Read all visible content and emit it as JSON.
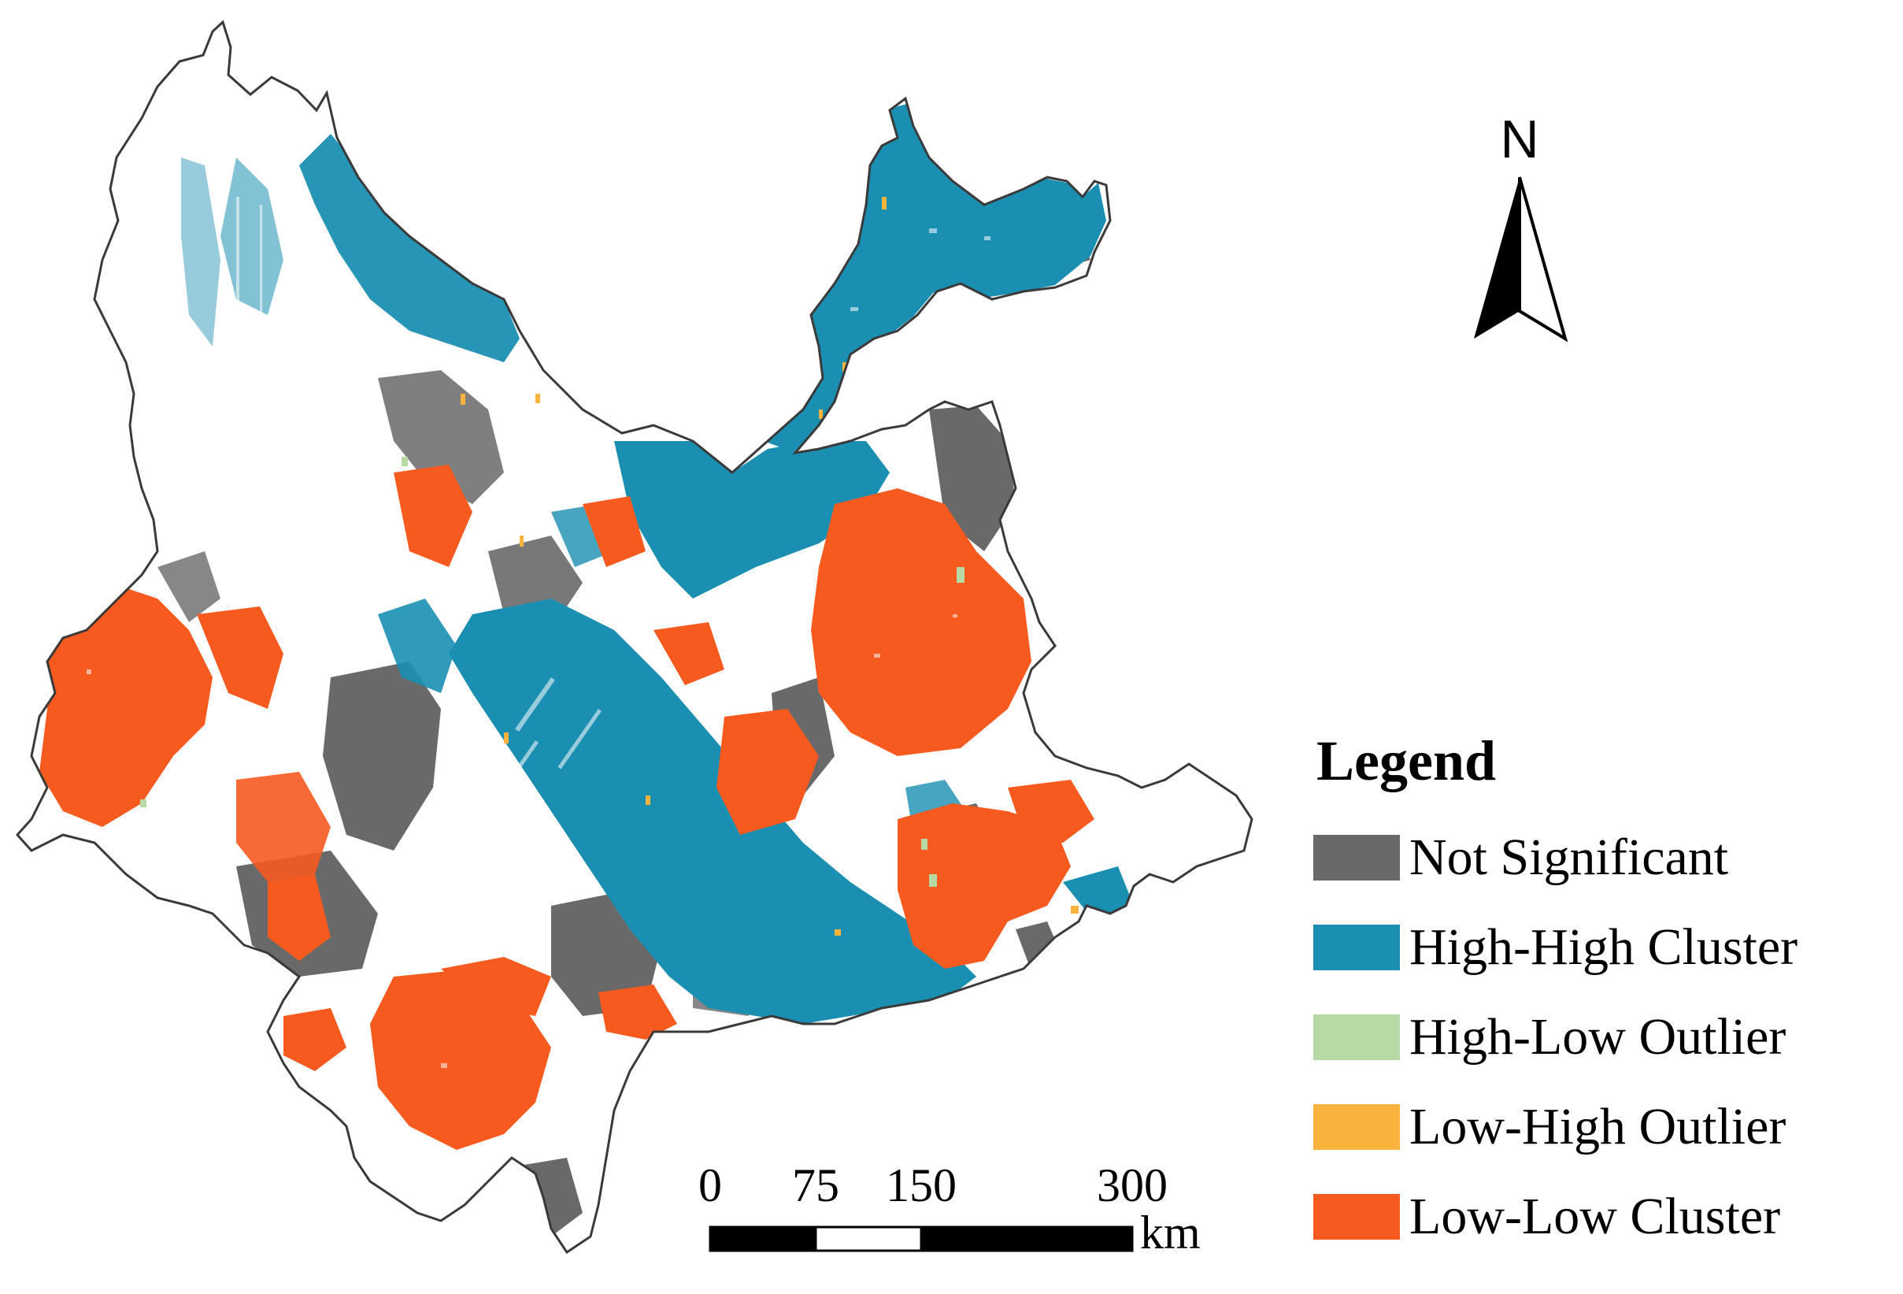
{
  "north_arrow": {
    "label": "N"
  },
  "legend": {
    "title": "Legend",
    "items": [
      {
        "label": "Not Significant",
        "color": "#696969",
        "name": "legend-item-not-significant"
      },
      {
        "label": "High-High Cluster",
        "color": "#1a8fb2",
        "name": "legend-item-high-high-cluster"
      },
      {
        "label": "High-Low Outlier",
        "color": "#b7d9a3",
        "name": "legend-item-high-low-outlier"
      },
      {
        "label": "Low-High Outlier",
        "color": "#f7b33b",
        "name": "legend-item-low-high-outlier"
      },
      {
        "label": "Low-Low Cluster",
        "color": "#f75a1f",
        "name": "legend-item-low-low-cluster"
      }
    ]
  },
  "scale_bar": {
    "ticks": [
      "0",
      "75",
      "150",
      "300"
    ],
    "tick_values": [
      0,
      75,
      150,
      300
    ],
    "unit": "km"
  },
  "colors": {
    "outline": "#3a3a3a",
    "not_significant": "#696969",
    "high_high": "#1a8fb2",
    "high_low": "#b7d9a3",
    "low_high": "#f7b33b",
    "low_low": "#f75a1f"
  }
}
